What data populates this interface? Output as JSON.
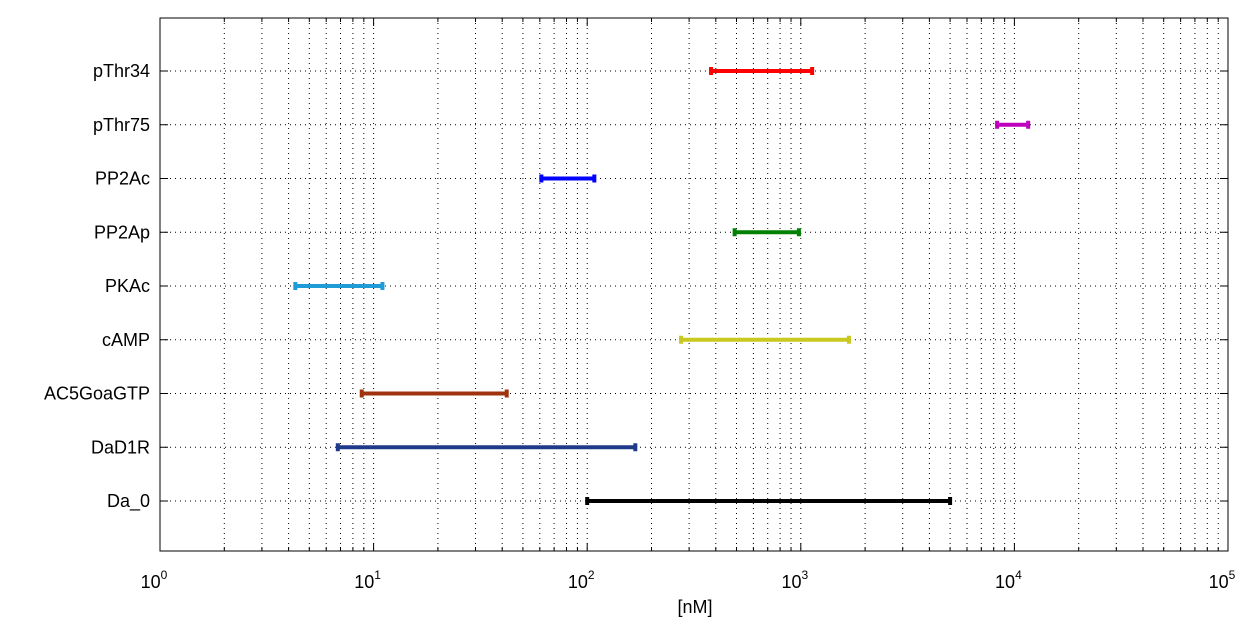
{
  "chart_data": {
    "type": "range-bar",
    "x_scale": "log",
    "xlim": [
      1,
      100000
    ],
    "xlabel": "[nM]",
    "x_ticks": [
      {
        "base": "10",
        "exp": "0"
      },
      {
        "base": "10",
        "exp": "1"
      },
      {
        "base": "10",
        "exp": "2"
      },
      {
        "base": "10",
        "exp": "3"
      },
      {
        "base": "10",
        "exp": "4"
      },
      {
        "base": "10",
        "exp": "5"
      }
    ],
    "grid": true,
    "grid_style": "dotted",
    "ranges": [
      {
        "label": "pThr34",
        "low": 380,
        "high": 1130,
        "color": "#ff0000"
      },
      {
        "label": "pThr75",
        "low": 8300,
        "high": 11600,
        "color": "#bf00bf"
      },
      {
        "label": "PP2Ac",
        "low": 61,
        "high": 108,
        "color": "#0000ff"
      },
      {
        "label": "PP2Ap",
        "low": 490,
        "high": 980,
        "color": "#008000"
      },
      {
        "label": "PKAc",
        "low": 4.3,
        "high": 11,
        "color": "#1f9bd7"
      },
      {
        "label": "cAMP",
        "low": 275,
        "high": 1680,
        "color": "#c8c81e"
      },
      {
        "label": "AC5GoaGTP",
        "low": 8.8,
        "high": 42,
        "color": "#a0330f"
      },
      {
        "label": "DaD1R",
        "low": 6.8,
        "high": 168,
        "color": "#1f3a8a"
      },
      {
        "label": "Da_0",
        "low": 100,
        "high": 5000,
        "color": "#000000"
      }
    ]
  }
}
